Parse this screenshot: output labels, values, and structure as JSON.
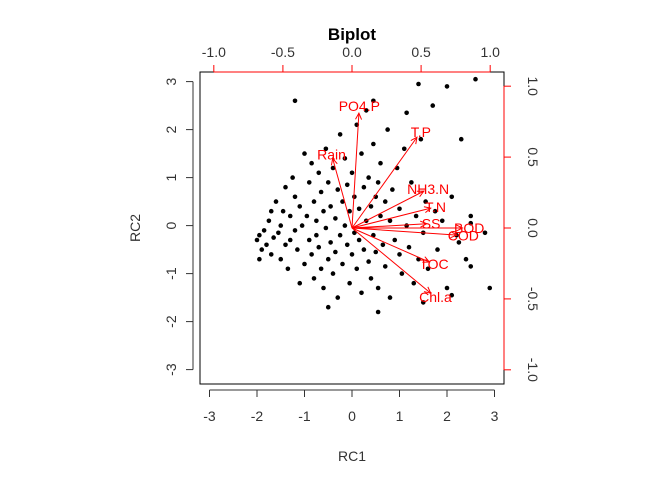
{
  "chart_data": {
    "type": "scatter",
    "title": "Biplot",
    "xlabel": "RC1",
    "ylabel": "RC2",
    "xlim": [
      -3.2,
      3.2
    ],
    "ylim": [
      -3.3,
      3.2
    ],
    "x_ticks": [
      -3,
      -2,
      -1,
      0,
      1,
      2,
      3
    ],
    "y_ticks": [
      -3,
      -2,
      -1,
      0,
      1,
      2,
      3
    ],
    "x_tick_labels": [
      "-3",
      "-2",
      "-1",
      "0",
      "1",
      "2",
      "3"
    ],
    "y_tick_labels": [
      "-3",
      "-2",
      "-1",
      "0",
      "1",
      "2",
      "3"
    ],
    "loadings_xlim": [
      -1.1,
      1.1
    ],
    "loadings_ylim": [
      -1.1,
      1.1
    ],
    "top_ticks": [
      -1.0,
      -0.5,
      0.0,
      0.5,
      1.0
    ],
    "top_tick_labels": [
      "-1.0",
      "-0.5",
      "0.0",
      "0.5",
      "1.0"
    ],
    "right_ticks": [
      -1.0,
      -0.5,
      0.0,
      0.5,
      1.0
    ],
    "right_tick_labels": [
      "-1.0",
      "-0.5",
      "0.0",
      "0.5",
      "1.0"
    ],
    "loadings_color": "#ff0000",
    "point_color": "#000000",
    "grid": false,
    "loadings": [
      {
        "name": "PO4.P",
        "x": 0.05,
        "y": 0.81
      },
      {
        "name": "T.P",
        "x": 0.47,
        "y": 0.64
      },
      {
        "name": "Rain",
        "x": -0.14,
        "y": 0.49
      },
      {
        "name": "NH3.N",
        "x": 0.52,
        "y": 0.26
      },
      {
        "name": "T.N",
        "x": 0.57,
        "y": 0.14
      },
      {
        "name": "SS",
        "x": 0.54,
        "y": 0.03
      },
      {
        "name": "BOD",
        "x": 0.8,
        "y": 0.0
      },
      {
        "name": "COD",
        "x": 0.76,
        "y": -0.05
      },
      {
        "name": "TOC",
        "x": 0.56,
        "y": -0.24
      },
      {
        "name": "Chl.a",
        "x": 0.57,
        "y": -0.46
      }
    ],
    "points": [
      [
        -2.0,
        -0.3
      ],
      [
        -1.95,
        -0.2
      ],
      [
        -1.9,
        -0.5
      ],
      [
        -1.85,
        -0.1
      ],
      [
        -1.8,
        -0.4
      ],
      [
        -1.75,
        0.1
      ],
      [
        -1.7,
        -0.6
      ],
      [
        -1.7,
        0.3
      ],
      [
        -1.65,
        -0.25
      ],
      [
        -1.6,
        0.5
      ],
      [
        -1.55,
        -0.15
      ],
      [
        -1.5,
        0.0
      ],
      [
        -1.5,
        -0.7
      ],
      [
        -1.45,
        0.3
      ],
      [
        -1.4,
        -0.4
      ],
      [
        -1.4,
        0.8
      ],
      [
        -1.35,
        -0.9
      ],
      [
        -1.3,
        0.2
      ],
      [
        -1.3,
        -0.3
      ],
      [
        -1.25,
        1.0
      ],
      [
        -1.2,
        -0.1
      ],
      [
        -1.2,
        0.6
      ],
      [
        -1.15,
        -0.5
      ],
      [
        -1.1,
        0.4
      ],
      [
        -1.1,
        -1.2
      ],
      [
        -1.05,
        0.0
      ],
      [
        -1.0,
        1.5
      ],
      [
        -1.0,
        -0.8
      ],
      [
        -0.95,
        0.2
      ],
      [
        -0.9,
        -0.3
      ],
      [
        -0.9,
        0.9
      ],
      [
        -0.85,
        1.3
      ],
      [
        -0.85,
        -0.6
      ],
      [
        -0.8,
        0.5
      ],
      [
        -0.8,
        -1.1
      ],
      [
        -0.75,
        0.1
      ],
      [
        -0.75,
        -0.2
      ],
      [
        -0.7,
        1.1
      ],
      [
        -0.7,
        -0.45
      ],
      [
        -0.65,
        0.7
      ],
      [
        -0.65,
        -0.9
      ],
      [
        -0.6,
        0.3
      ],
      [
        -0.6,
        -1.3
      ],
      [
        -0.55,
        1.6
      ],
      [
        -0.55,
        -0.05
      ],
      [
        -0.5,
        0.9
      ],
      [
        -0.5,
        -0.7
      ],
      [
        -0.45,
        0.4
      ],
      [
        -0.45,
        -0.35
      ],
      [
        -0.4,
        1.2
      ],
      [
        -0.4,
        -1.0
      ],
      [
        -0.35,
        0.15
      ],
      [
        -0.35,
        -0.55
      ],
      [
        -0.3,
        0.75
      ],
      [
        -0.3,
        -1.5
      ],
      [
        -0.25,
        1.9
      ],
      [
        -0.25,
        -0.2
      ],
      [
        -0.2,
        0.5
      ],
      [
        -0.2,
        -0.8
      ],
      [
        -0.15,
        1.4
      ],
      [
        -0.15,
        0.0
      ],
      [
        -0.1,
        -0.4
      ],
      [
        -0.1,
        0.85
      ],
      [
        -0.05,
        -1.2
      ],
      [
        -0.05,
        0.3
      ],
      [
        0.0,
        1.1
      ],
      [
        0.0,
        -0.6
      ],
      [
        0.05,
        0.6
      ],
      [
        0.05,
        -0.15
      ],
      [
        0.1,
        2.1
      ],
      [
        0.1,
        -0.9
      ],
      [
        0.15,
        0.35
      ],
      [
        0.15,
        -0.3
      ],
      [
        0.2,
        1.5
      ],
      [
        0.2,
        -1.4
      ],
      [
        0.25,
        0.8
      ],
      [
        0.25,
        -0.5
      ],
      [
        0.3,
        0.1
      ],
      [
        0.3,
        2.4
      ],
      [
        0.35,
        -0.75
      ],
      [
        0.35,
        1.0
      ],
      [
        0.4,
        0.4
      ],
      [
        0.4,
        -1.1
      ],
      [
        0.45,
        1.7
      ],
      [
        0.45,
        -0.2
      ],
      [
        0.5,
        0.6
      ],
      [
        0.5,
        -0.55
      ],
      [
        0.55,
        0.9
      ],
      [
        0.55,
        -1.3
      ],
      [
        0.6,
        0.2
      ],
      [
        0.6,
        1.3
      ],
      [
        0.65,
        -0.4
      ],
      [
        0.7,
        0.5
      ],
      [
        0.7,
        -0.85
      ],
      [
        0.75,
        2.0
      ],
      [
        0.8,
        0.1
      ],
      [
        0.8,
        -1.5
      ],
      [
        0.85,
        0.75
      ],
      [
        0.9,
        -0.3
      ],
      [
        0.95,
        1.2
      ],
      [
        1.0,
        -0.6
      ],
      [
        1.0,
        0.35
      ],
      [
        1.05,
        -1.0
      ],
      [
        1.1,
        1.6
      ],
      [
        1.15,
        0.0
      ],
      [
        1.2,
        -0.45
      ],
      [
        1.25,
        0.9
      ],
      [
        1.3,
        -1.2
      ],
      [
        1.35,
        0.2
      ],
      [
        1.4,
        -0.7
      ],
      [
        1.45,
        1.8
      ],
      [
        1.5,
        -0.15
      ],
      [
        1.55,
        0.5
      ],
      [
        1.6,
        -0.9
      ],
      [
        1.7,
        2.5
      ],
      [
        1.75,
        0.3
      ],
      [
        1.8,
        -0.5
      ],
      [
        1.9,
        0.1
      ],
      [
        2.0,
        -1.3
      ],
      [
        2.1,
        0.6
      ],
      [
        2.2,
        -0.2
      ],
      [
        2.3,
        1.8
      ],
      [
        2.4,
        -0.7
      ],
      [
        2.5,
        0.2
      ],
      [
        2.6,
        3.05
      ],
      [
        2.8,
        -0.15
      ],
      [
        2.9,
        -1.3
      ],
      [
        2.0,
        2.9
      ],
      [
        1.4,
        2.95
      ],
      [
        -1.2,
        2.6
      ],
      [
        1.15,
        2.35
      ],
      [
        0.45,
        2.6
      ],
      [
        -0.5,
        -1.7
      ],
      [
        0.55,
        -1.8
      ],
      [
        1.5,
        -1.6
      ],
      [
        -1.95,
        -0.7
      ],
      [
        2.1,
        -1.45
      ],
      [
        2.5,
        -0.85
      ],
      [
        2.25,
        -0.35
      ],
      [
        2.5,
        0.05
      ]
    ]
  }
}
